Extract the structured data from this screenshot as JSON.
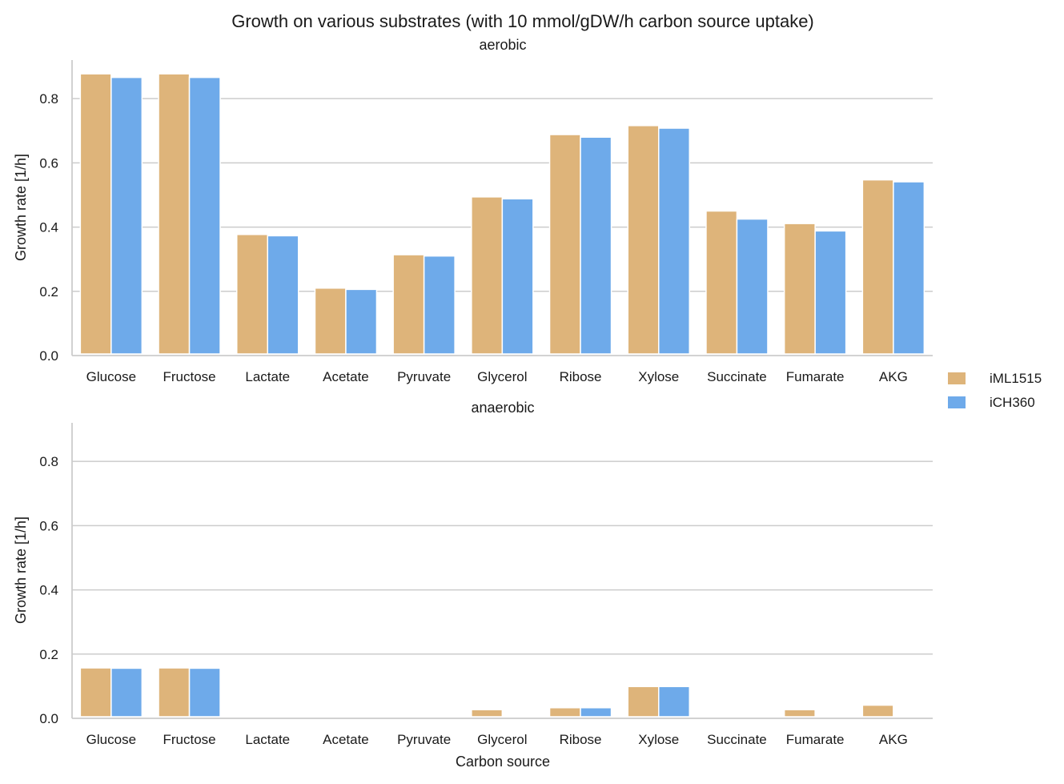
{
  "chart_data": {
    "type": "bar",
    "title": "Growth on various substrates (with 10 mmol/gDW/h carbon source uptake)",
    "xlabel": "Carbon source",
    "ylabel": "Growth rate [1/h]",
    "ylim": [
      0,
      0.92
    ],
    "yticks": [
      "0.0",
      "0.2",
      "0.4",
      "0.6",
      "0.8"
    ],
    "grid": true,
    "legend_position": "center-right",
    "categories": [
      "Glucose",
      "Fructose",
      "Lactate",
      "Acetate",
      "Pyruvate",
      "Glycerol",
      "Ribose",
      "Xylose",
      "Succinate",
      "Fumarate",
      "AKG"
    ],
    "legend": [
      {
        "name": "iML1515",
        "color": "#deb47a"
      },
      {
        "name": "iCH360",
        "color": "#6eaaea"
      }
    ],
    "panels": [
      {
        "title": "aerobic",
        "series": [
          {
            "name": "iML1515",
            "values": [
              0.877,
              0.877,
              0.377,
              0.21,
              0.314,
              0.494,
              0.688,
              0.716,
              0.45,
              0.411,
              0.547
            ]
          },
          {
            "name": "iCH360",
            "values": [
              0.866,
              0.866,
              0.373,
              0.206,
              0.31,
              0.488,
              0.68,
              0.708,
              0.425,
              0.388,
              0.541
            ]
          }
        ]
      },
      {
        "title": "anaerobic",
        "series": [
          {
            "name": "iML1515",
            "values": [
              0.157,
              0.157,
              0.0,
              0.0,
              0.0,
              0.027,
              0.033,
              0.099,
              0.0,
              0.027,
              0.041
            ]
          },
          {
            "name": "iCH360",
            "values": [
              0.156,
              0.156,
              0.0,
              0.0,
              0.0,
              0.0,
              0.033,
              0.099,
              0.0,
              0.0,
              0.0
            ]
          }
        ]
      }
    ]
  }
}
